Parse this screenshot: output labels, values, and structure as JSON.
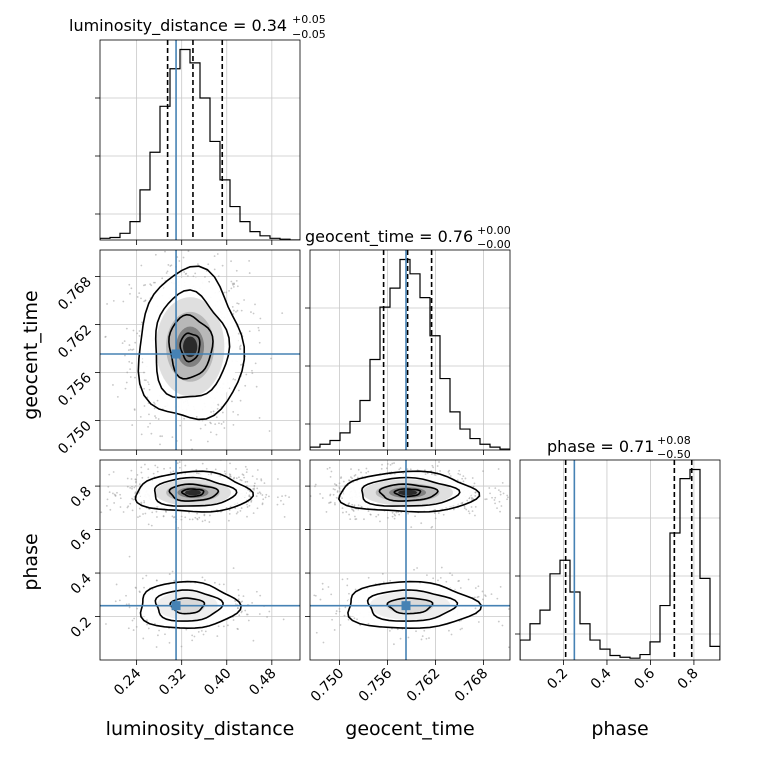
{
  "chart_data": {
    "type": "corner",
    "parameters": [
      "luminosity_distance",
      "geocent_time",
      "phase"
    ],
    "axis_labels": [
      "luminosity_distance",
      "geocent_time",
      "phase"
    ],
    "ranges": {
      "luminosity_distance": [
        0.175,
        0.53
      ],
      "geocent_time": [
        0.7463,
        0.7713
      ],
      "phase": [
        0.0,
        0.92
      ]
    },
    "ticks": {
      "luminosity_distance": [
        "0.24",
        "0.32",
        "0.40",
        "0.48"
      ],
      "geocent_time_x": [
        "0.750",
        "0.756",
        "0.762",
        "0.768"
      ],
      "geocent_time_y": [
        "0.750",
        "0.756",
        "0.762",
        "0.768"
      ],
      "phase_x": [
        "0.2",
        "0.4",
        "0.6",
        "0.8"
      ],
      "phase_y": [
        "0.2",
        "0.4",
        "0.6",
        "0.8"
      ]
    },
    "truths": {
      "luminosity_distance": 0.31,
      "geocent_time": 0.7583,
      "phase": 0.25
    },
    "truth_color": "#4682b4",
    "titles": [
      {
        "param": "luminosity_distance",
        "prefix": "luminosity_distance = 0.34",
        "plus": "+0.05",
        "minus": "−0.05"
      },
      {
        "param": "geocent_time",
        "prefix": "geocent_time = 0.76",
        "plus": "+0.00",
        "minus": "−0.00"
      },
      {
        "param": "phase",
        "prefix": "phase = 0.71",
        "plus": "+0.08",
        "minus": "−0.50"
      }
    ],
    "quantiles": {
      "luminosity_distance": [
        0.295,
        0.34,
        0.392
      ],
      "geocent_time": [
        0.7555,
        0.7585,
        0.7615
      ],
      "phase": [
        0.21,
        0.71,
        0.79
      ]
    },
    "hist_1d": {
      "luminosity_distance": {
        "edges": [
          0.175,
          0.19275,
          0.2105,
          0.22825,
          0.246,
          0.26375,
          0.2815,
          0.29925,
          0.317,
          0.33475,
          0.3525,
          0.37025,
          0.388,
          0.40575,
          0.4235,
          0.44125,
          0.459,
          0.47675,
          0.4945,
          0.51225,
          0.53
        ],
        "counts": [
          2,
          3,
          8,
          22,
          60,
          105,
          160,
          205,
          228,
          212,
          170,
          118,
          72,
          40,
          22,
          10,
          5,
          2,
          1,
          0
        ]
      },
      "geocent_time": {
        "edges": [
          0.7463,
          0.74755,
          0.7488,
          0.75005,
          0.7513,
          0.75255,
          0.7538,
          0.75505,
          0.7563,
          0.75755,
          0.7588,
          0.76005,
          0.7613,
          0.76255,
          0.7638,
          0.76505,
          0.7663,
          0.76755,
          0.7688,
          0.77005,
          0.7713
        ],
        "counts": [
          3,
          6,
          10,
          18,
          30,
          52,
          95,
          150,
          170,
          200,
          185,
          160,
          120,
          75,
          40,
          22,
          12,
          6,
          3,
          1
        ]
      },
      "phase": {
        "edges": [
          0.0,
          0.046,
          0.092,
          0.138,
          0.184,
          0.23,
          0.276,
          0.322,
          0.368,
          0.414,
          0.46,
          0.506,
          0.552,
          0.598,
          0.644,
          0.69,
          0.736,
          0.782,
          0.828,
          0.874,
          0.92
        ],
        "counts": [
          22,
          40,
          55,
          95,
          110,
          75,
          40,
          22,
          12,
          5,
          3,
          2,
          6,
          20,
          60,
          140,
          200,
          210,
          90,
          15
        ]
      }
    },
    "modes_2d": {
      "luminosity_distance|geocent_time": [
        [
          0.335,
          0.7592,
          0.045,
          0.0046,
          1.0
        ]
      ],
      "luminosity_distance|phase": [
        [
          0.34,
          0.77,
          0.05,
          0.045,
          1.0
        ],
        [
          0.33,
          0.25,
          0.045,
          0.055,
          0.45
        ]
      ],
      "geocent_time|phase": [
        [
          0.7585,
          0.77,
          0.0042,
          0.045,
          1.0
        ],
        [
          0.7588,
          0.25,
          0.0042,
          0.055,
          0.45
        ]
      ]
    }
  }
}
